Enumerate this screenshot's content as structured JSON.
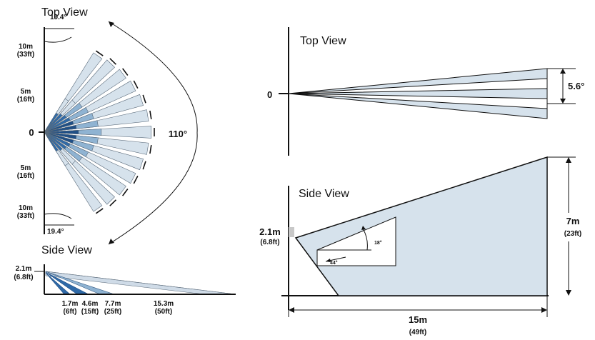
{
  "left_panel": {
    "top_view": {
      "title": "Top View",
      "y_labels": [
        {
          "metric": "10m",
          "imperial": "(33ft)"
        },
        {
          "metric": "5m",
          "imperial": "(16ft)"
        },
        {
          "metric": "0",
          "imperial": ""
        },
        {
          "metric": "5m",
          "imperial": "(16ft)"
        },
        {
          "metric": "10m",
          "imperial": "(33ft)"
        }
      ],
      "edge_angle_top": "19.4°",
      "edge_angle_bottom": "19.4°",
      "coverage_angle": "110°"
    },
    "side_view": {
      "title": "Side View",
      "height_metric": "2.1m",
      "height_imperial": "(6.8ft)",
      "distances": [
        {
          "metric": "1.7m",
          "imperial": "(6ft)"
        },
        {
          "metric": "4.6m",
          "imperial": "(15ft)"
        },
        {
          "metric": "7.7m",
          "imperial": "(25ft)"
        },
        {
          "metric": "15.3m",
          "imperial": "(50ft)"
        }
      ]
    }
  },
  "right_panel": {
    "top_view": {
      "title": "Top View",
      "origin_label": "0",
      "beam_angle": "5.6°"
    },
    "side_view": {
      "title": "Side View",
      "mount_height_metric": "2.1m",
      "mount_height_imperial": "(6.8ft)",
      "height_metric": "7m",
      "height_imperial": "(23ft)",
      "range_metric": "15m",
      "range_imperial": "(49ft)",
      "inner_angle_a": "18°",
      "inner_angle_b": "44°"
    }
  },
  "colors": {
    "beam_light": "#d6e2ec",
    "beam_mid": "#8fb3d2",
    "beam_dark": "#2f6aa8",
    "beam_darkest": "#1f4f86",
    "line": "#111111"
  }
}
